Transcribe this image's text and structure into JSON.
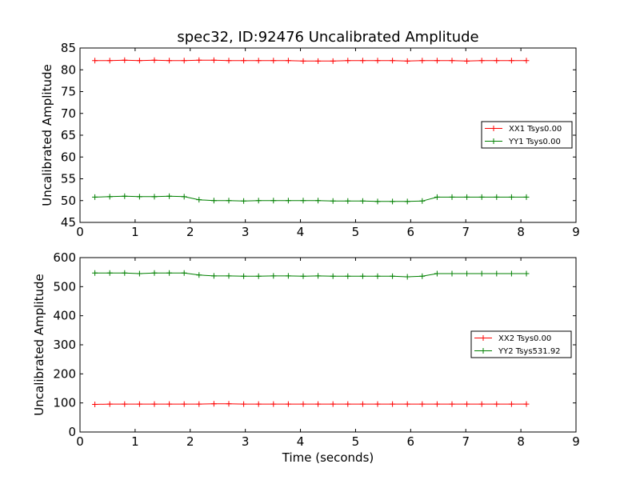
{
  "chart_data": [
    {
      "type": "line",
      "title": "spec32, ID:92476 Uncalibrated Amplitude",
      "xlabel": "",
      "ylabel": "Uncalibrated Amplitude",
      "xlim": [
        0,
        9
      ],
      "ylim": [
        45,
        85
      ],
      "xticks": [
        "0",
        "1",
        "2",
        "3",
        "4",
        "5",
        "6",
        "7",
        "8",
        "9"
      ],
      "yticks": [
        "45",
        "50",
        "55",
        "60",
        "65",
        "70",
        "75",
        "80",
        "85"
      ],
      "grid": false,
      "legend_position": "right",
      "x": [
        0.27,
        0.54,
        0.81,
        1.08,
        1.35,
        1.62,
        1.89,
        2.16,
        2.43,
        2.7,
        2.97,
        3.24,
        3.51,
        3.78,
        4.05,
        4.32,
        4.59,
        4.86,
        5.13,
        5.4,
        5.67,
        5.94,
        6.21,
        6.48,
        6.75,
        7.02,
        7.29,
        7.56,
        7.83,
        8.1
      ],
      "series": [
        {
          "name": "XX1 Tsys0.00",
          "color": "#ff0000",
          "values": [
            82.1,
            82.1,
            82.2,
            82.1,
            82.2,
            82.1,
            82.1,
            82.2,
            82.2,
            82.1,
            82.1,
            82.1,
            82.1,
            82.1,
            82.0,
            82.0,
            82.0,
            82.1,
            82.1,
            82.1,
            82.1,
            82.0,
            82.1,
            82.1,
            82.1,
            82.0,
            82.1,
            82.1,
            82.1,
            82.1
          ]
        },
        {
          "name": "YY1 Tsys0.00",
          "color": "#008000",
          "values": [
            50.8,
            50.9,
            51.0,
            50.9,
            50.9,
            51.0,
            50.9,
            50.2,
            50.0,
            50.0,
            49.9,
            50.0,
            50.0,
            50.0,
            50.0,
            50.0,
            49.9,
            49.9,
            49.9,
            49.8,
            49.8,
            49.8,
            49.9,
            50.8,
            50.8,
            50.8,
            50.8,
            50.8,
            50.8,
            50.8
          ]
        }
      ]
    },
    {
      "type": "line",
      "title": "",
      "xlabel": "Time (seconds)",
      "ylabel": "Uncalibrated Amplitude",
      "xlim": [
        0,
        9
      ],
      "ylim": [
        0,
        600
      ],
      "xticks": [
        "0",
        "1",
        "2",
        "3",
        "4",
        "5",
        "6",
        "7",
        "8",
        "9"
      ],
      "yticks": [
        "0",
        "100",
        "200",
        "300",
        "400",
        "500",
        "600"
      ],
      "grid": false,
      "legend_position": "right",
      "x": [
        0.27,
        0.54,
        0.81,
        1.08,
        1.35,
        1.62,
        1.89,
        2.16,
        2.43,
        2.7,
        2.97,
        3.24,
        3.51,
        3.78,
        4.05,
        4.32,
        4.59,
        4.86,
        5.13,
        5.4,
        5.67,
        5.94,
        6.21,
        6.48,
        6.75,
        7.02,
        7.29,
        7.56,
        7.83,
        8.1
      ],
      "series": [
        {
          "name": "XX2 Tsys0.00",
          "color": "#ff0000",
          "values": [
            95,
            96,
            96,
            96,
            96,
            96,
            96,
            96,
            97,
            97,
            96,
            96,
            96,
            96,
            96,
            96,
            96,
            96,
            96,
            96,
            96,
            96,
            96,
            96,
            96,
            96,
            96,
            96,
            96,
            96
          ]
        },
        {
          "name": "YY2 Tsys531.92",
          "color": "#008000",
          "values": [
            547,
            547,
            547,
            545,
            547,
            547,
            547,
            540,
            537,
            537,
            536,
            536,
            537,
            537,
            536,
            537,
            536,
            536,
            536,
            536,
            536,
            534,
            536,
            545,
            545,
            545,
            545,
            545,
            545,
            545
          ]
        }
      ]
    }
  ]
}
